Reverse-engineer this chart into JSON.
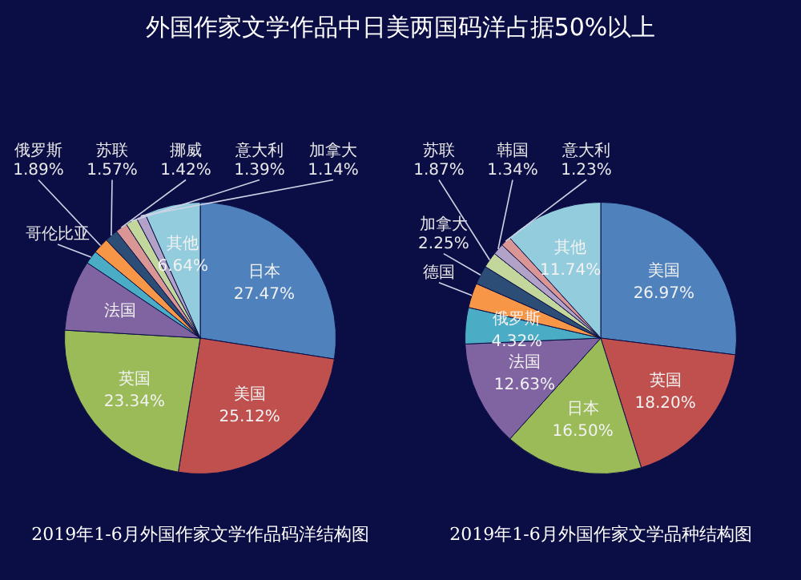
{
  "chart_data": [
    {
      "type": "pie",
      "title": "2019年1-6月外国作家文学作品码洋结构图",
      "annotations": [
        "外国作家文学作品中日美两国码洋占据50%以上"
      ],
      "categories": [
        "日本",
        "美国",
        "英国",
        "法国",
        "哥伦比亚",
        "俄罗斯",
        "苏联",
        "挪威",
        "意大利",
        "加拿大",
        "其他"
      ],
      "values": [
        27.47,
        25.12,
        23.34,
        8.42,
        1.6,
        1.89,
        1.57,
        1.42,
        1.39,
        1.14,
        6.64
      ],
      "value_labels": [
        "27.47%",
        "25.12%",
        "23.34%",
        null,
        null,
        "1.89%",
        "1.57%",
        "1.42%",
        "1.39%",
        "1.14%",
        "6.64%"
      ],
      "colors": [
        "#4f81bd",
        "#c0504d",
        "#9bbb59",
        "#8064a2",
        "#4bacc6",
        "#f79646",
        "#2c4d75",
        "#d99694",
        "#c3d69b",
        "#b3a2c7",
        "#93cddd"
      ]
    },
    {
      "type": "pie",
      "title": "2019年1-6月外国作家文学品种结构图",
      "categories": [
        "美国",
        "英国",
        "日本",
        "法国",
        "俄罗斯",
        "德国",
        "加拿大",
        "苏联",
        "韩国",
        "意大利",
        "其他"
      ],
      "values": [
        26.97,
        18.2,
        16.5,
        12.63,
        4.32,
        2.95,
        2.25,
        1.87,
        1.34,
        1.23,
        11.74
      ],
      "value_labels": [
        "26.97%",
        "18.20%",
        "16.50%",
        "12.63%",
        "4.32%",
        null,
        "2.25%",
        "1.87%",
        "1.34%",
        "1.23%",
        "11.74%"
      ],
      "colors": [
        "#4f81bd",
        "#c0504d",
        "#9bbb59",
        "#8064a2",
        "#4bacc6",
        "#f79646",
        "#2c4d75",
        "#c3d69b",
        "#b3a2c7",
        "#d99694",
        "#93cddd"
      ]
    }
  ]
}
